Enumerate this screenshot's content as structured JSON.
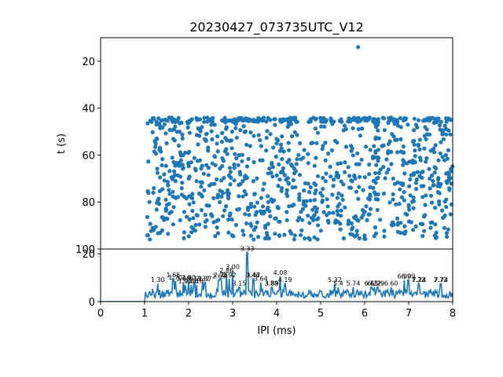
{
  "chart_data": [
    {
      "type": "scatter",
      "title": "20230427_073735UTC_V12",
      "xlabel": "",
      "ylabel": "t (s)",
      "xlim": [
        0,
        8
      ],
      "ylim": [
        100,
        10
      ],
      "y_inverted": true,
      "yticks": [
        "20",
        "40",
        "60",
        "80",
        "100"
      ],
      "color": "#1f77b4",
      "point_cloud": {
        "x_range": [
          1.05,
          8.0
        ],
        "t_range": [
          44,
          96
        ],
        "dense_band_t": [
          44,
          46
        ],
        "count": 1100
      },
      "outliers": [
        {
          "x": 5.85,
          "t": 14
        }
      ]
    },
    {
      "type": "line",
      "title": "",
      "xlabel": "IPI (ms)",
      "ylabel": "",
      "xlim": [
        0,
        8
      ],
      "ylim": [
        0,
        22
      ],
      "xticks": [
        "0",
        "1",
        "2",
        "3",
        "4",
        "5",
        "6",
        "7",
        "8"
      ],
      "yticks": [
        "0",
        "20"
      ],
      "color": "#1f77b4",
      "baseline_zero_until": 1.0,
      "peaks": [
        {
          "x": 1.3,
          "y": 7.5,
          "label": "1.30"
        },
        {
          "x": 1.65,
          "y": 9.5,
          "label": "1.65"
        },
        {
          "x": 1.7,
          "y": 8.5,
          "label": "1.70"
        },
        {
          "x": 1.88,
          "y": 8.0,
          "label": "1.88"
        },
        {
          "x": 1.92,
          "y": 7.0,
          "label": "1.92"
        },
        {
          "x": 2.0,
          "y": 8.5,
          "label": "2.00"
        },
        {
          "x": 2.06,
          "y": 7.0,
          "label": "2.06"
        },
        {
          "x": 2.13,
          "y": 8.0,
          "label": "2.13"
        },
        {
          "x": 2.18,
          "y": 7.0,
          "label": "2.18"
        },
        {
          "x": 2.32,
          "y": 8.0,
          "label": "2.32"
        },
        {
          "x": 2.37,
          "y": 8.0,
          "label": "2.37"
        },
        {
          "x": 2.69,
          "y": 9.0,
          "label": "2.69"
        },
        {
          "x": 2.73,
          "y": 9.5,
          "label": "2.73"
        },
        {
          "x": 2.86,
          "y": 11.5,
          "label": "2.86"
        },
        {
          "x": 2.92,
          "y": 9.5,
          "label": "2.92"
        },
        {
          "x": 3.0,
          "y": 13.0,
          "label": "3.00"
        },
        {
          "x": 3.15,
          "y": 6.0,
          "label": "3.15"
        },
        {
          "x": 3.33,
          "y": 20.5,
          "label": "3.33"
        },
        {
          "x": 3.46,
          "y": 9.5,
          "label": "3.46"
        },
        {
          "x": 3.47,
          "y": 9.5,
          "label": "3.47"
        },
        {
          "x": 3.64,
          "y": 8.0,
          "label": "3.64"
        },
        {
          "x": 3.88,
          "y": 6.0,
          "label": "3.88"
        },
        {
          "x": 3.89,
          "y": 6.0,
          "label": "3.89"
        },
        {
          "x": 4.08,
          "y": 10.5,
          "label": "4.08"
        },
        {
          "x": 4.19,
          "y": 7.5,
          "label": "4.19"
        },
        {
          "x": 5.32,
          "y": 7.5,
          "label": "5.32"
        },
        {
          "x": 5.4,
          "y": 6.0,
          "label": "5.4"
        },
        {
          "x": 5.74,
          "y": 6.0,
          "label": "5.74"
        },
        {
          "x": 6.15,
          "y": 6.0,
          "label": "6.15"
        },
        {
          "x": 6.22,
          "y": 6.0,
          "label": "6.22"
        },
        {
          "x": 6.29,
          "y": 6.0,
          "label": "6.29"
        },
        {
          "x": 6.6,
          "y": 6.0,
          "label": "6.60"
        },
        {
          "x": 6.9,
          "y": 9.0,
          "label": "6.90"
        },
        {
          "x": 6.99,
          "y": 9.0,
          "label": "6.99"
        },
        {
          "x": 7.22,
          "y": 7.5,
          "label": "7.22"
        },
        {
          "x": 7.24,
          "y": 7.5,
          "label": "7.24"
        },
        {
          "x": 7.72,
          "y": 7.5,
          "label": "7.72"
        },
        {
          "x": 7.74,
          "y": 7.5,
          "label": "7.74"
        }
      ]
    }
  ]
}
